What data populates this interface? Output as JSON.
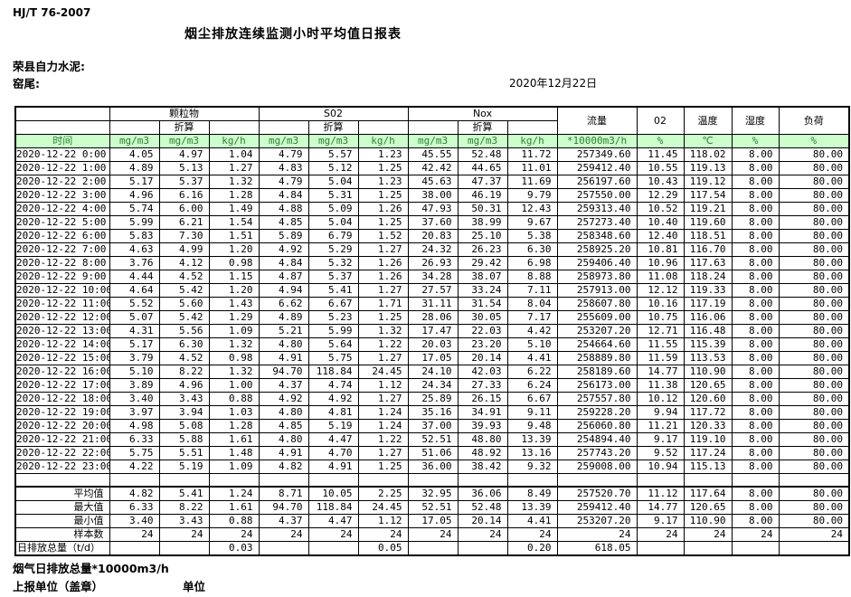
{
  "header": {
    "standard_no": "HJ/T  76-2007",
    "title": "烟尘排放连续监测小时平均值日报表",
    "company": "荣县自力水泥:",
    "station": "窑尾:",
    "date": "2020年12月22日"
  },
  "table": {
    "time_label": "时间",
    "converted_label": "折算",
    "groups": {
      "pm": "颗粒物",
      "so2": "S02",
      "nox": "Nox",
      "flow": "流量",
      "o2": "02",
      "temp": "温度",
      "humidity": "湿度",
      "load": "负荷"
    },
    "units": [
      "mg/m3",
      "mg/m3",
      "kg/h",
      "mg/m3",
      "mg/m3",
      "kg/h",
      "mg/m3",
      "mg/m3",
      "kg/h",
      "*10000m3/h",
      "%",
      "℃",
      "%",
      "%"
    ],
    "rows": [
      [
        "2020-12-22  0:00",
        "4.05",
        "4.97",
        "1.04",
        "4.79",
        "5.57",
        "1.23",
        "45.55",
        "52.48",
        "11.72",
        "257349.60",
        "11.45",
        "118.02",
        "8.00",
        "80.00"
      ],
      [
        "2020-12-22  1:00",
        "4.89",
        "5.13",
        "1.27",
        "4.83",
        "5.12",
        "1.25",
        "42.42",
        "44.65",
        "11.01",
        "259412.40",
        "10.55",
        "119.13",
        "8.00",
        "80.00"
      ],
      [
        "2020-12-22  2:00",
        "5.17",
        "5.37",
        "1.32",
        "4.79",
        "5.04",
        "1.23",
        "45.63",
        "47.37",
        "11.69",
        "256197.60",
        "10.43",
        "119.12",
        "8.00",
        "80.00"
      ],
      [
        "2020-12-22  3:00",
        "4.96",
        "6.16",
        "1.28",
        "4.84",
        "5.31",
        "1.25",
        "38.00",
        "46.19",
        "9.79",
        "257550.00",
        "12.29",
        "117.54",
        "8.00",
        "80.00"
      ],
      [
        "2020-12-22  4:00",
        "5.74",
        "6.00",
        "1.49",
        "4.88",
        "5.09",
        "1.26",
        "47.93",
        "50.31",
        "12.43",
        "259313.40",
        "10.52",
        "119.21",
        "8.00",
        "80.00"
      ],
      [
        "2020-12-22  5:00",
        "5.99",
        "6.21",
        "1.54",
        "4.85",
        "5.04",
        "1.25",
        "37.60",
        "38.99",
        "9.67",
        "257273.40",
        "10.40",
        "119.60",
        "8.00",
        "80.00"
      ],
      [
        "2020-12-22  6:00",
        "5.83",
        "7.30",
        "1.51",
        "5.89",
        "6.79",
        "1.52",
        "20.83",
        "25.10",
        "5.38",
        "258348.60",
        "12.40",
        "118.51",
        "8.00",
        "80.00"
      ],
      [
        "2020-12-22  7:00",
        "4.63",
        "4.99",
        "1.20",
        "4.92",
        "5.29",
        "1.27",
        "24.32",
        "26.23",
        "6.30",
        "258925.20",
        "10.81",
        "116.70",
        "8.00",
        "80.00"
      ],
      [
        "2020-12-22  8:00",
        "3.76",
        "4.12",
        "0.98",
        "4.84",
        "5.32",
        "1.26",
        "26.93",
        "29.42",
        "6.98",
        "259406.40",
        "10.96",
        "117.63",
        "8.00",
        "80.00"
      ],
      [
        "2020-12-22  9:00",
        "4.44",
        "4.52",
        "1.15",
        "4.87",
        "5.37",
        "1.26",
        "34.28",
        "38.07",
        "8.88",
        "258973.80",
        "11.08",
        "118.24",
        "8.00",
        "80.00"
      ],
      [
        "2020-12-22 10:00",
        "4.64",
        "5.42",
        "1.20",
        "4.94",
        "5.41",
        "1.27",
        "27.57",
        "33.24",
        "7.11",
        "257913.00",
        "12.12",
        "119.33",
        "8.00",
        "80.00"
      ],
      [
        "2020-12-22 11:00",
        "5.52",
        "5.60",
        "1.43",
        "6.62",
        "6.67",
        "1.71",
        "31.11",
        "31.54",
        "8.04",
        "258607.80",
        "10.16",
        "117.19",
        "8.00",
        "80.00"
      ],
      [
        "2020-12-22 12:00",
        "5.07",
        "5.42",
        "1.29",
        "4.89",
        "5.23",
        "1.25",
        "28.06",
        "30.05",
        "7.17",
        "255609.00",
        "10.75",
        "116.06",
        "8.00",
        "80.00"
      ],
      [
        "2020-12-22 13:00",
        "4.31",
        "5.56",
        "1.09",
        "5.21",
        "5.99",
        "1.32",
        "17.47",
        "22.03",
        "4.42",
        "253207.20",
        "12.71",
        "116.48",
        "8.00",
        "80.00"
      ],
      [
        "2020-12-22 14:00",
        "5.17",
        "6.30",
        "1.32",
        "4.80",
        "5.64",
        "1.22",
        "20.03",
        "23.20",
        "5.10",
        "254664.60",
        "11.55",
        "115.39",
        "8.00",
        "80.00"
      ],
      [
        "2020-12-22 15:00",
        "3.79",
        "4.52",
        "0.98",
        "4.91",
        "5.75",
        "1.27",
        "17.05",
        "20.14",
        "4.41",
        "258889.80",
        "11.59",
        "113.53",
        "8.00",
        "80.00"
      ],
      [
        "2020-12-22 16:00",
        "5.10",
        "8.22",
        "1.32",
        "94.70",
        "118.84",
        "24.45",
        "24.10",
        "42.03",
        "6.22",
        "258189.60",
        "14.77",
        "110.90",
        "8.00",
        "80.00"
      ],
      [
        "2020-12-22 17:00",
        "3.89",
        "4.96",
        "1.00",
        "4.37",
        "4.74",
        "1.12",
        "24.34",
        "27.33",
        "6.24",
        "256173.00",
        "11.38",
        "120.65",
        "8.00",
        "80.00"
      ],
      [
        "2020-12-22 18:00",
        "3.40",
        "3.43",
        "0.88",
        "4.92",
        "4.92",
        "1.27",
        "25.89",
        "26.15",
        "6.67",
        "257557.80",
        "10.12",
        "120.60",
        "8.00",
        "80.00"
      ],
      [
        "2020-12-22 19:00",
        "3.97",
        "3.94",
        "1.03",
        "4.80",
        "4.81",
        "1.24",
        "35.16",
        "34.91",
        "9.11",
        "259228.20",
        "9.94",
        "117.72",
        "8.00",
        "80.00"
      ],
      [
        "2020-12-22 20:00",
        "4.98",
        "5.08",
        "1.28",
        "4.85",
        "5.19",
        "1.24",
        "37.00",
        "39.93",
        "9.48",
        "256060.80",
        "11.21",
        "120.33",
        "8.00",
        "80.00"
      ],
      [
        "2020-12-22 21:00",
        "6.33",
        "5.88",
        "1.61",
        "4.80",
        "4.47",
        "1.22",
        "52.51",
        "48.80",
        "13.39",
        "254894.40",
        "9.17",
        "119.10",
        "8.00",
        "80.00"
      ],
      [
        "2020-12-22 22:00",
        "5.75",
        "5.51",
        "1.48",
        "4.91",
        "4.70",
        "1.27",
        "51.06",
        "48.92",
        "13.16",
        "257743.20",
        "9.52",
        "117.24",
        "8.00",
        "80.00"
      ],
      [
        "2020-12-22 23:00",
        "4.22",
        "5.19",
        "1.09",
        "4.82",
        "4.91",
        "1.25",
        "36.00",
        "38.42",
        "9.32",
        "259008.00",
        "10.94",
        "115.13",
        "8.00",
        "80.00"
      ]
    ],
    "summary": [
      {
        "label": "平均值",
        "values": [
          "4.82",
          "5.41",
          "1.24",
          "8.71",
          "10.05",
          "2.25",
          "32.95",
          "36.06",
          "8.49",
          "257520.70",
          "11.12",
          "117.64",
          "8.00",
          "80.00"
        ]
      },
      {
        "label": "最大值",
        "values": [
          "6.33",
          "8.22",
          "1.61",
          "94.70",
          "118.84",
          "24.45",
          "52.51",
          "52.48",
          "13.39",
          "259412.40",
          "14.77",
          "120.65",
          "8.00",
          "80.00"
        ]
      },
      {
        "label": "最小值",
        "values": [
          "3.40",
          "3.43",
          "0.88",
          "4.37",
          "4.47",
          "1.12",
          "17.05",
          "20.14",
          "4.41",
          "253207.20",
          "9.17",
          "110.90",
          "8.00",
          "80.00"
        ]
      },
      {
        "label": "样本数",
        "values": [
          "24",
          "24",
          "24",
          "24",
          "24",
          "24",
          "24",
          "24",
          "24",
          "24",
          "24",
          "24",
          "24",
          "24"
        ]
      },
      {
        "label": "日排放总量（t/d）",
        "values": [
          "",
          "",
          "0.03",
          "",
          "",
          "0.05",
          "",
          "",
          "0.20",
          "618.05",
          "",
          "",
          "",
          ""
        ]
      }
    ]
  },
  "footer": {
    "gas_total": "烟气日排放总量*10000m3/h",
    "report_unit": "上报单位（盖章）",
    "unit": "单位"
  },
  "colors": {
    "header_bg": "#ccffcc",
    "header_text": "#2e7d32",
    "border": "#000000"
  }
}
